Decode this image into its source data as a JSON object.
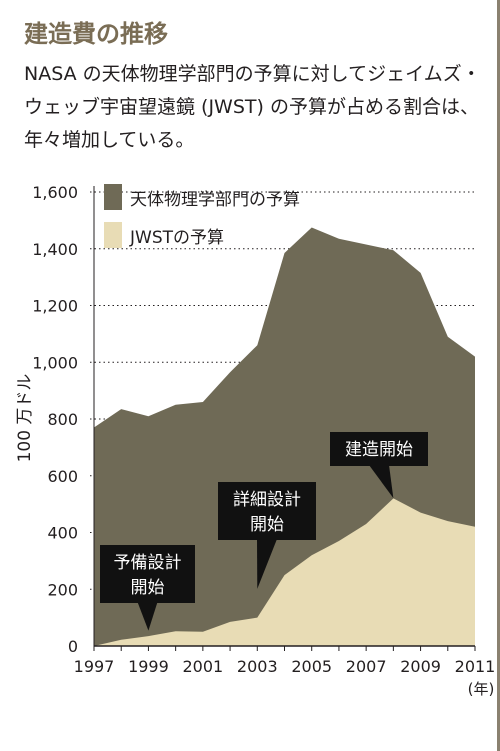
{
  "title": "建造費の推移",
  "subtitle": "NASA の天体物理学部門の予算に対してジェイムズ・ウェッブ宇宙望遠鏡 (JWST) の予算が占める割合は、年々増加している。",
  "colors": {
    "total": "#6f6a56",
    "jwst": "#e8dcb5",
    "callout": "#111111"
  },
  "chart_data": {
    "type": "area",
    "ylabel": "100 万ドル",
    "xlabel": "(年)",
    "x": [
      1997,
      1998,
      1999,
      2000,
      2001,
      2002,
      2003,
      2004,
      2005,
      2006,
      2007,
      2008,
      2009,
      2010,
      2011
    ],
    "xticks": [
      1997,
      1999,
      2001,
      2003,
      2005,
      2007,
      2009,
      2011
    ],
    "xtick_labels": [
      "1997",
      "1999",
      "2001",
      "2003",
      "2005",
      "2007",
      "2009",
      "2011"
    ],
    "xlim": [
      1997,
      2011
    ],
    "ylim": [
      0,
      1600
    ],
    "yticks": [
      0,
      200,
      400,
      600,
      800,
      1000,
      1200,
      1400,
      1600
    ],
    "ytick_labels": [
      "0",
      "200",
      "400",
      "600",
      "800",
      "1,000",
      "1,200",
      "1,400",
      "1,600"
    ],
    "series": [
      {
        "name": "天体物理学部門の予算",
        "values": [
          770,
          835,
          810,
          850,
          860,
          965,
          1060,
          1385,
          1475,
          1435,
          1415,
          1395,
          1315,
          1090,
          1020
        ]
      },
      {
        "name": "JWSTの予算",
        "values": [
          0,
          22,
          35,
          52,
          50,
          85,
          100,
          250,
          320,
          370,
          430,
          520,
          470,
          440,
          420
        ]
      }
    ],
    "annotations": [
      {
        "label_lines": [
          "予備設計",
          "開始"
        ],
        "x": 1999,
        "y": 40
      },
      {
        "label_lines": [
          "詳細設計",
          "開始"
        ],
        "x": 2003,
        "y": 180
      },
      {
        "label_lines": [
          "建造開始"
        ],
        "x": 2008,
        "y": 500
      }
    ]
  }
}
